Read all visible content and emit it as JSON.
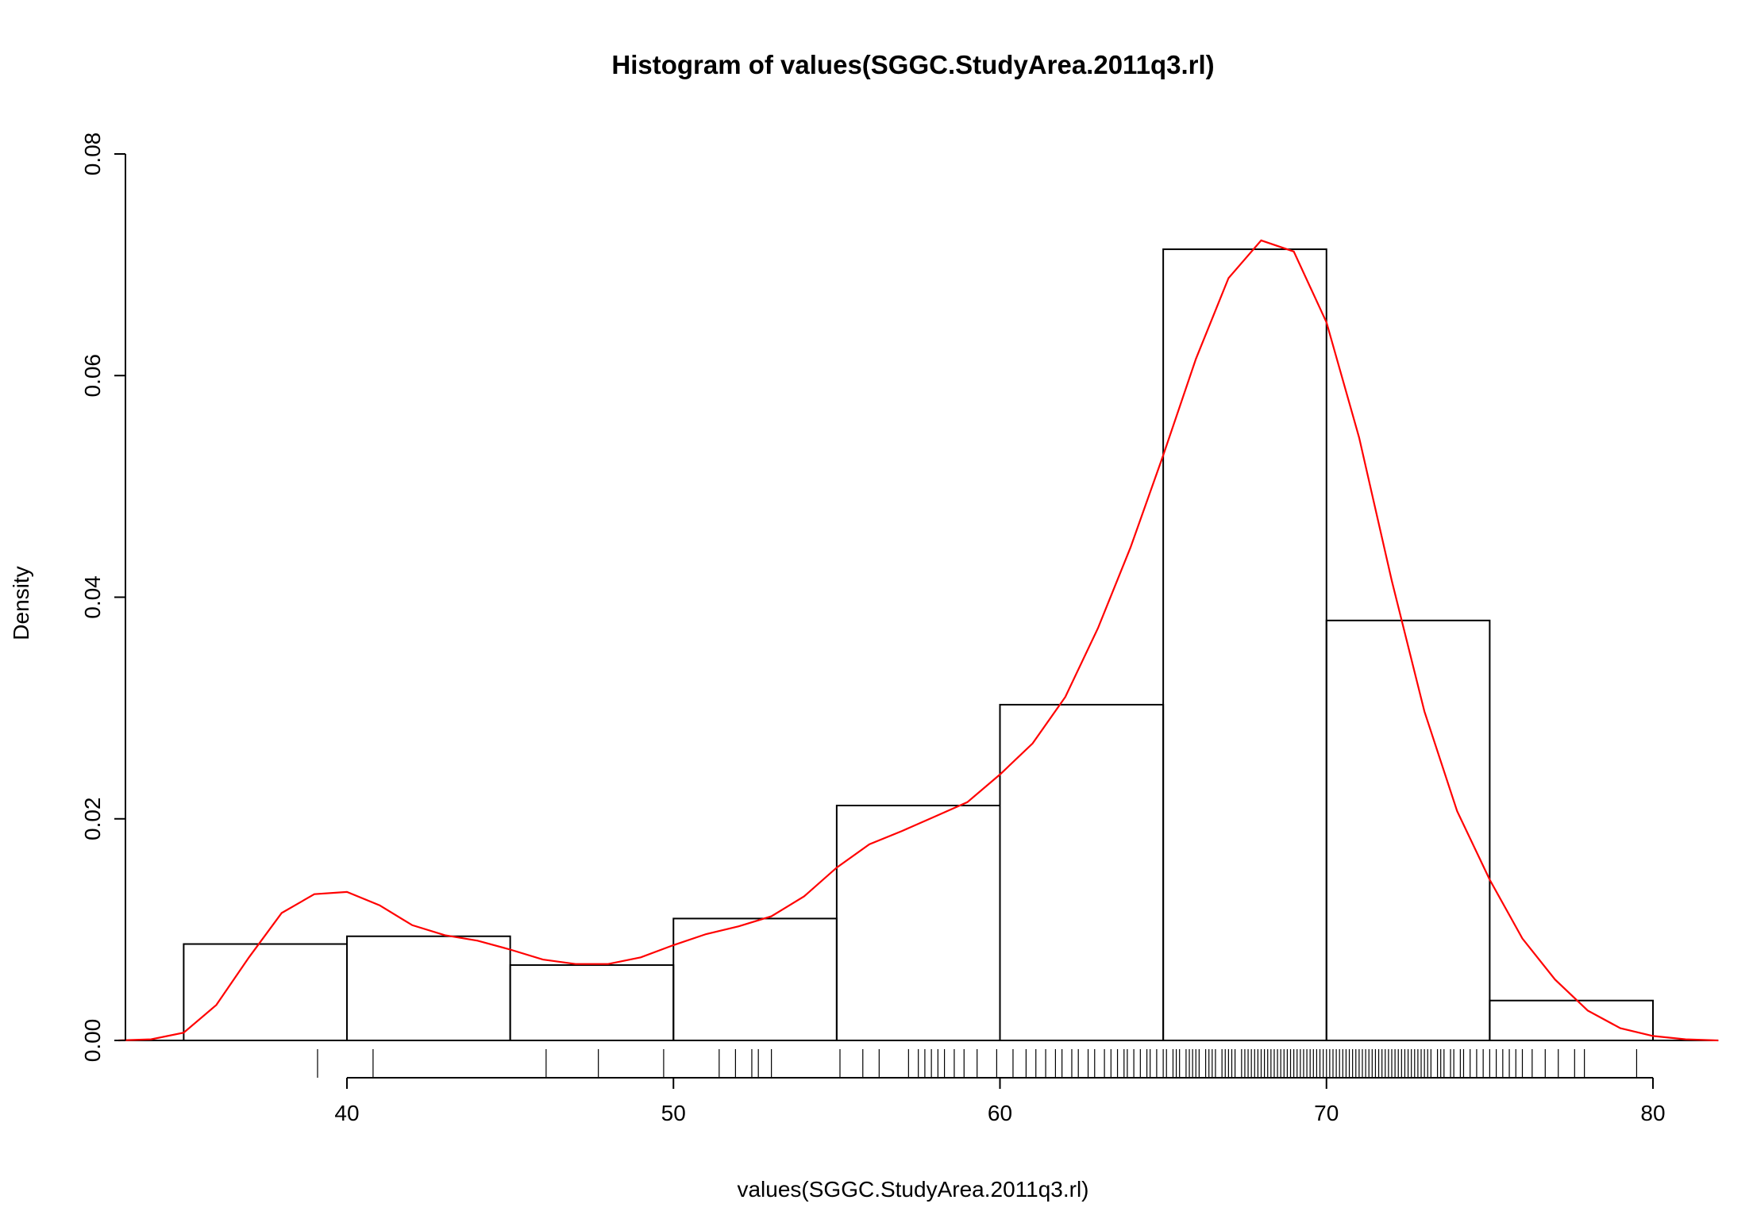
{
  "chart_data": {
    "type": "bar",
    "title": "Histogram of values(SGGC.StudyArea.2011q3.rl)",
    "xlabel": "values(SGGC.StudyArea.2011q3.rl)",
    "ylabel": "Density",
    "xlim": [
      33,
      82
    ],
    "ylim": [
      0,
      0.08
    ],
    "x_ticks": [
      "40",
      "50",
      "60",
      "70",
      "80"
    ],
    "y_ticks": [
      "0.00",
      "0.02",
      "0.04",
      "0.06",
      "0.08"
    ],
    "bins": [
      {
        "start": 35,
        "end": 40,
        "density": 0.0087
      },
      {
        "start": 40,
        "end": 45,
        "density": 0.0094
      },
      {
        "start": 45,
        "end": 50,
        "density": 0.0068
      },
      {
        "start": 50,
        "end": 55,
        "density": 0.011
      },
      {
        "start": 55,
        "end": 60,
        "density": 0.0212
      },
      {
        "start": 60,
        "end": 65,
        "density": 0.0303
      },
      {
        "start": 65,
        "end": 70,
        "density": 0.0714
      },
      {
        "start": 70,
        "end": 75,
        "density": 0.0379
      },
      {
        "start": 75,
        "end": 80,
        "density": 0.0036
      }
    ],
    "density_curve": {
      "color": "#ff0000",
      "x": [
        33,
        34,
        35,
        36,
        37,
        38,
        39,
        40,
        41,
        42,
        43,
        44,
        45,
        46,
        47,
        48,
        49,
        50,
        51,
        52,
        53,
        54,
        55,
        56,
        57,
        58,
        59,
        60,
        61,
        62,
        63,
        64,
        65,
        66,
        67,
        68,
        69,
        70,
        71,
        72,
        73,
        74,
        75,
        76,
        77,
        78,
        79,
        80,
        81,
        82
      ],
      "y": [
        0.0,
        0.0001,
        0.0007,
        0.0032,
        0.0075,
        0.0115,
        0.0132,
        0.0134,
        0.0122,
        0.0104,
        0.0095,
        0.009,
        0.0082,
        0.0073,
        0.0069,
        0.0069,
        0.0075,
        0.0086,
        0.0096,
        0.0103,
        0.0112,
        0.013,
        0.0156,
        0.0177,
        0.0189,
        0.0202,
        0.0215,
        0.024,
        0.0268,
        0.031,
        0.0372,
        0.0445,
        0.0528,
        0.0615,
        0.0688,
        0.0722,
        0.0712,
        0.0648,
        0.0544,
        0.0415,
        0.0297,
        0.0207,
        0.0145,
        0.0092,
        0.0055,
        0.0027,
        0.0011,
        0.0004,
        0.0001,
        0.0
      ]
    },
    "rug": {
      "color": "#000000",
      "values": [
        39.1,
        40.8,
        46.1,
        47.7,
        49.7,
        51.4,
        51.9,
        52.4,
        52.6,
        53.0,
        55.1,
        55.8,
        56.3,
        57.2,
        57.5,
        57.7,
        57.9,
        58.1,
        58.3,
        58.6,
        58.9,
        59.3,
        59.9,
        60.4,
        60.8,
        61.1,
        61.4,
        61.7,
        61.9,
        62.2,
        62.4,
        62.7,
        62.9,
        63.2,
        63.4,
        63.6,
        63.8,
        63.9,
        64.1,
        64.3,
        64.5,
        64.6,
        64.8,
        65.0,
        65.1,
        65.3,
        65.4,
        65.5,
        65.7,
        65.8,
        65.9,
        66.0,
        66.1,
        66.3,
        66.4,
        66.5,
        66.6,
        66.8,
        66.9,
        67.0,
        67.1,
        67.2,
        67.4,
        67.5,
        67.6,
        67.7,
        67.8,
        67.9,
        68.0,
        68.1,
        68.2,
        68.3,
        68.4,
        68.5,
        68.6,
        68.7,
        68.8,
        68.9,
        69.0,
        69.1,
        69.2,
        69.3,
        69.4,
        69.5,
        69.6,
        69.7,
        69.8,
        69.9,
        70.0,
        70.1,
        70.2,
        70.3,
        70.4,
        70.5,
        70.6,
        70.7,
        70.8,
        70.9,
        71.0,
        71.1,
        71.2,
        71.3,
        71.4,
        71.5,
        71.6,
        71.7,
        71.8,
        71.9,
        72.0,
        72.1,
        72.2,
        72.3,
        72.4,
        72.5,
        72.6,
        72.7,
        72.8,
        72.9,
        73.0,
        73.1,
        73.2,
        73.4,
        73.5,
        73.6,
        73.8,
        73.9,
        74.1,
        74.2,
        74.4,
        74.6,
        74.8,
        75.0,
        75.2,
        75.4,
        75.6,
        75.8,
        76.0,
        76.3,
        76.7,
        77.1,
        77.6,
        77.9,
        79.5
      ]
    }
  }
}
